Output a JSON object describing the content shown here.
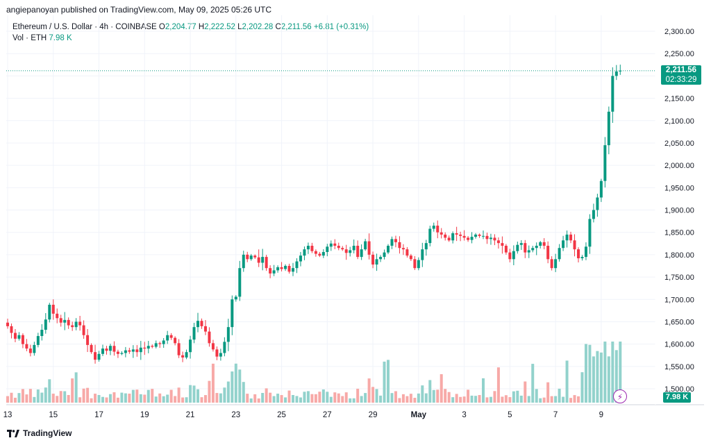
{
  "header": {
    "text": "angiepanoyan published on TradingView.com, May 09, 2025 05:26 UTC"
  },
  "legend": {
    "symbol": "Ethereum / U.S. Dollar · 4h · COINBASE",
    "o_label": "O",
    "o_value": "2,204.77",
    "h_label": "H",
    "h_value": "2,222.52",
    "l_label": "L",
    "l_value": "2,202.28",
    "c_label": "C",
    "c_value": "2,211.56",
    "change": "+6.81 (+0.31%)",
    "vol_label": "Vol · ETH",
    "vol_value": "7.98 K"
  },
  "price_tag": {
    "price": "2,211.56",
    "countdown": "02:33:29"
  },
  "vol_tag": {
    "value": "7.98 K"
  },
  "footer": {
    "brand": "TradingView"
  },
  "colors": {
    "up": "#089981",
    "down": "#f23645",
    "up_vol": "#92d2cc",
    "down_vol": "#f7a9a7",
    "grid": "#f0f3fa"
  },
  "chart_data": {
    "type": "candlestick",
    "title": "Ethereum / U.S. Dollar · 4h · COINBASE",
    "y_ticks": [
      "2,300.00",
      "2,250.00",
      "2,200.00",
      "2,150.00",
      "2,100.00",
      "2,050.00",
      "2,000.00",
      "1,950.00",
      "1,900.00",
      "1,850.00",
      "1,800.00",
      "1,750.00",
      "1,700.00",
      "1,650.00",
      "1,600.00",
      "1,550.00",
      "1,500.00"
    ],
    "y_range": [
      1485,
      2320
    ],
    "x_ticks": [
      {
        "label": "13",
        "index": 0
      },
      {
        "label": "15",
        "index": 12
      },
      {
        "label": "17",
        "index": 24
      },
      {
        "label": "19",
        "index": 36
      },
      {
        "label": "21",
        "index": 48
      },
      {
        "label": "23",
        "index": 60
      },
      {
        "label": "25",
        "index": 72
      },
      {
        "label": "27",
        "index": 84
      },
      {
        "label": "29",
        "index": 96
      },
      {
        "label": "May",
        "index": 108
      },
      {
        "label": "3",
        "index": 120
      },
      {
        "label": "5",
        "index": 132
      },
      {
        "label": "7",
        "index": 144
      },
      {
        "label": "9",
        "index": 156
      }
    ],
    "last_price": 2211.56,
    "closes": [
      1640,
      1625,
      1612,
      1620,
      1600,
      1590,
      1580,
      1598,
      1618,
      1632,
      1655,
      1688,
      1668,
      1658,
      1648,
      1654,
      1642,
      1638,
      1650,
      1642,
      1620,
      1598,
      1582,
      1565,
      1578,
      1590,
      1585,
      1596,
      1583,
      1578,
      1580,
      1586,
      1583,
      1588,
      1582,
      1592,
      1590,
      1596,
      1594,
      1602,
      1600,
      1608,
      1620,
      1614,
      1602,
      1575,
      1570,
      1582,
      1610,
      1638,
      1652,
      1640,
      1628,
      1602,
      1588,
      1572,
      1580,
      1605,
      1638,
      1700,
      1706,
      1770,
      1800,
      1790,
      1798,
      1794,
      1782,
      1795,
      1770,
      1758,
      1765,
      1772,
      1768,
      1775,
      1762,
      1770,
      1785,
      1798,
      1812,
      1820,
      1808,
      1802,
      1798,
      1806,
      1818,
      1825,
      1820,
      1815,
      1812,
      1804,
      1810,
      1820,
      1795,
      1812,
      1830,
      1800,
      1778,
      1790,
      1795,
      1805,
      1820,
      1835,
      1828,
      1815,
      1812,
      1798,
      1790,
      1770,
      1788,
      1812,
      1826,
      1858,
      1865,
      1850,
      1845,
      1838,
      1832,
      1848,
      1845,
      1842,
      1838,
      1833,
      1840,
      1845,
      1842,
      1842,
      1835,
      1838,
      1832,
      1826,
      1820,
      1805,
      1790,
      1808,
      1822,
      1826,
      1805,
      1810,
      1815,
      1820,
      1828,
      1820,
      1790,
      1770,
      1790,
      1815,
      1832,
      1845,
      1832,
      1812,
      1792,
      1795,
      1818,
      1880,
      1900,
      1928,
      1965,
      2045,
      2120,
      2200,
      2210,
      2211.56
    ]
  }
}
